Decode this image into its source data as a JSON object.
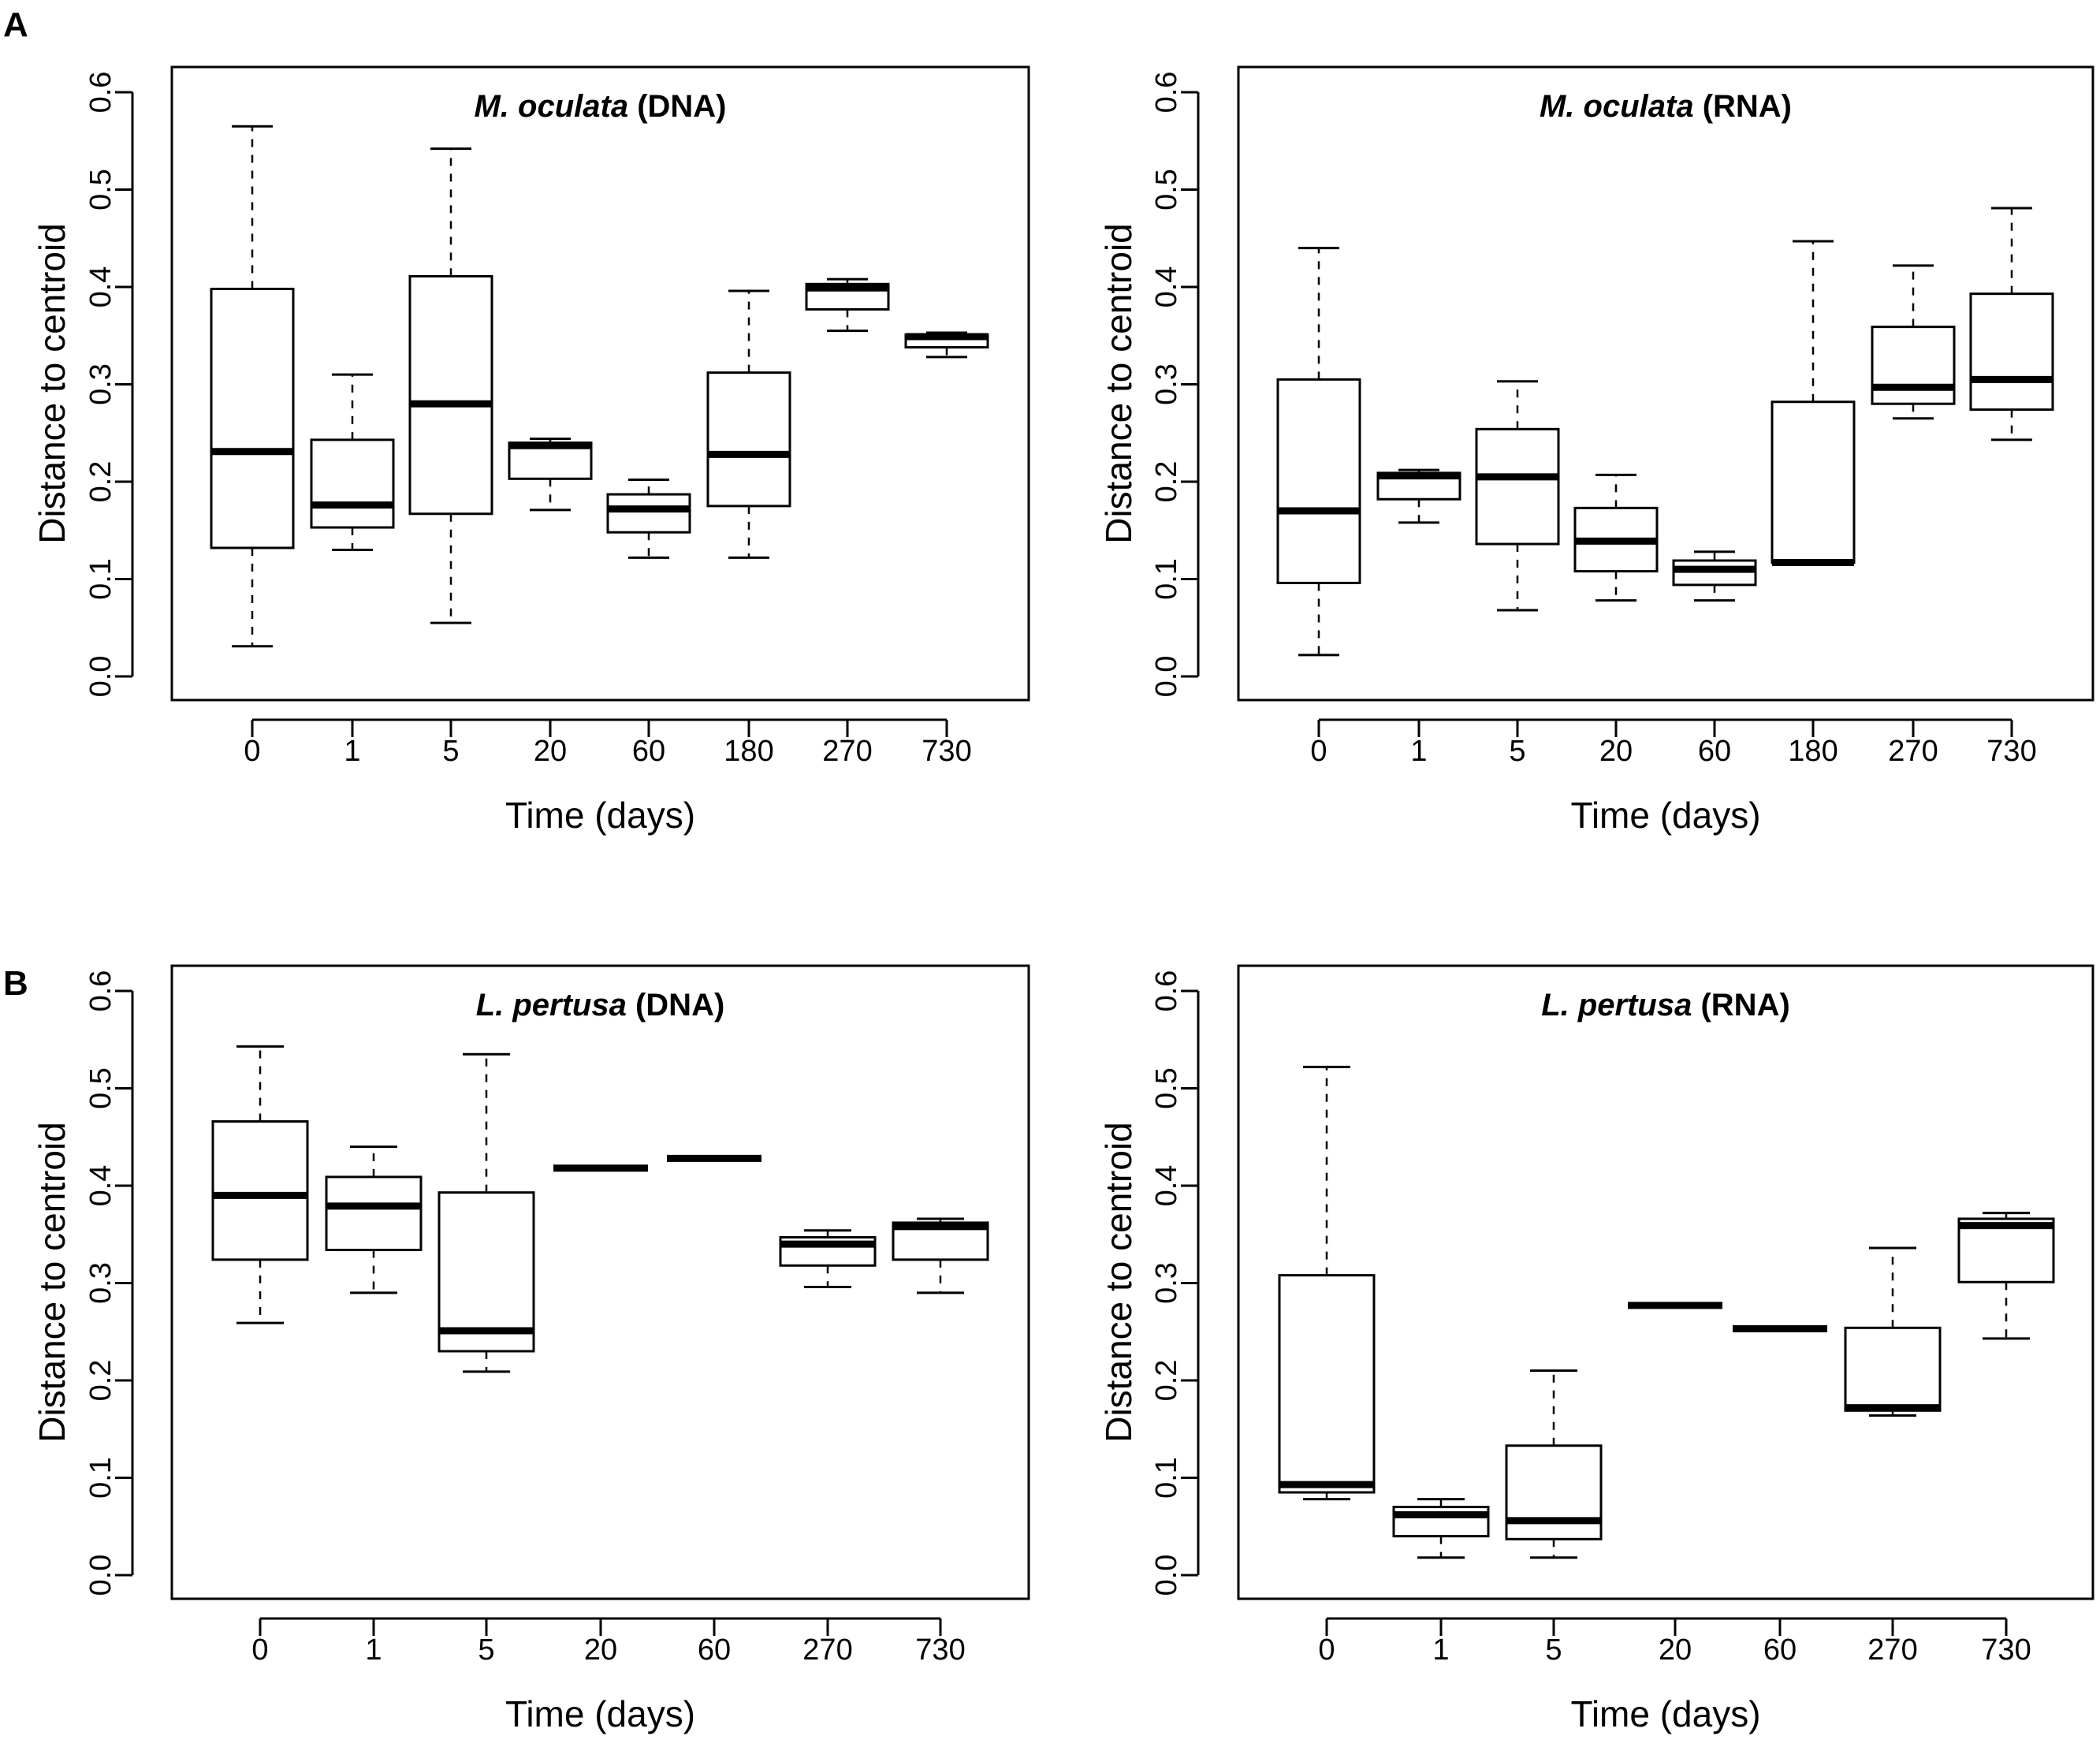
{
  "figure": {
    "panel_labels": [
      "A",
      "B"
    ]
  },
  "chart_data": [
    {
      "type": "box",
      "panel": "A",
      "title_italic": "M. oculata",
      "title_rest": " (DNA)",
      "xlabel": "Time (days)",
      "ylabel": "Distance to centroid",
      "ylim": [
        0.0,
        0.6
      ],
      "yticks": [
        "0.0",
        "0.1",
        "0.2",
        "0.3",
        "0.4",
        "0.5",
        "0.6"
      ],
      "categories": [
        "0",
        "1",
        "5",
        "20",
        "60",
        "180",
        "270",
        "730"
      ],
      "boxes": [
        {
          "min": 0.031,
          "q1": 0.132,
          "median": 0.231,
          "q3": 0.398,
          "max": 0.565
        },
        {
          "min": 0.13,
          "q1": 0.153,
          "median": 0.176,
          "q3": 0.243,
          "max": 0.31
        },
        {
          "min": 0.055,
          "q1": 0.167,
          "median": 0.28,
          "q3": 0.411,
          "max": 0.542
        },
        {
          "min": 0.171,
          "q1": 0.203,
          "median": 0.237,
          "q3": 0.24,
          "max": 0.244
        },
        {
          "min": 0.122,
          "q1": 0.148,
          "median": 0.172,
          "q3": 0.187,
          "max": 0.202
        },
        {
          "min": 0.122,
          "q1": 0.175,
          "median": 0.228,
          "q3": 0.312,
          "max": 0.396
        },
        {
          "min": 0.355,
          "q1": 0.377,
          "median": 0.399,
          "q3": 0.403,
          "max": 0.408
        },
        {
          "min": 0.328,
          "q1": 0.338,
          "median": 0.349,
          "q3": 0.351,
          "max": 0.353
        }
      ]
    },
    {
      "type": "box",
      "panel": "A",
      "title_italic": "M. oculata",
      "title_rest": " (RNA)",
      "xlabel": "Time (days)",
      "ylabel": "Distance to centroid",
      "ylim": [
        0.0,
        0.6
      ],
      "yticks": [
        "0.0",
        "0.1",
        "0.2",
        "0.3",
        "0.4",
        "0.5",
        "0.6"
      ],
      "categories": [
        "0",
        "1",
        "5",
        "20",
        "60",
        "180",
        "270",
        "730"
      ],
      "boxes": [
        {
          "min": 0.022,
          "q1": 0.096,
          "median": 0.17,
          "q3": 0.305,
          "max": 0.44
        },
        {
          "min": 0.158,
          "q1": 0.182,
          "median": 0.206,
          "q3": 0.209,
          "max": 0.212
        },
        {
          "min": 0.068,
          "q1": 0.136,
          "median": 0.205,
          "q3": 0.254,
          "max": 0.303
        },
        {
          "min": 0.078,
          "q1": 0.108,
          "median": 0.139,
          "q3": 0.173,
          "max": 0.207
        },
        {
          "min": 0.078,
          "q1": 0.094,
          "median": 0.11,
          "q3": 0.119,
          "max": 0.128
        },
        {
          "min": 0.117,
          "q1": 0.117,
          "median": 0.117,
          "q3": 0.282,
          "max": 0.447
        },
        {
          "min": 0.265,
          "q1": 0.28,
          "median": 0.297,
          "q3": 0.359,
          "max": 0.422
        },
        {
          "min": 0.243,
          "q1": 0.274,
          "median": 0.305,
          "q3": 0.393,
          "max": 0.481
        }
      ]
    },
    {
      "type": "box",
      "panel": "B",
      "title_italic": "L. pertusa",
      "title_rest": " (DNA)",
      "xlabel": "Time (days)",
      "ylabel": "Distance to centroid",
      "ylim": [
        0.0,
        0.6
      ],
      "yticks": [
        "0.0",
        "0.1",
        "0.2",
        "0.3",
        "0.4",
        "0.5",
        "0.6"
      ],
      "categories": [
        "0",
        "1",
        "5",
        "20",
        "60",
        "270",
        "730"
      ],
      "boxes": [
        {
          "min": 0.259,
          "q1": 0.324,
          "median": 0.39,
          "q3": 0.466,
          "max": 0.543
        },
        {
          "min": 0.29,
          "q1": 0.334,
          "median": 0.379,
          "q3": 0.409,
          "max": 0.44
        },
        {
          "min": 0.209,
          "q1": 0.23,
          "median": 0.251,
          "q3": 0.393,
          "max": 0.535
        },
        {
          "min": 0.418,
          "q1": 0.418,
          "median": 0.418,
          "q3": 0.418,
          "max": 0.418
        },
        {
          "min": 0.428,
          "q1": 0.428,
          "median": 0.428,
          "q3": 0.428,
          "max": 0.428
        },
        {
          "min": 0.296,
          "q1": 0.318,
          "median": 0.34,
          "q3": 0.347,
          "max": 0.354
        },
        {
          "min": 0.29,
          "q1": 0.324,
          "median": 0.358,
          "q3": 0.362,
          "max": 0.366
        }
      ]
    },
    {
      "type": "box",
      "panel": "B",
      "title_italic": "L. pertusa",
      "title_rest": " (RNA)",
      "xlabel": "Time (days)",
      "ylabel": "Distance to centroid",
      "ylim": [
        0.0,
        0.6
      ],
      "yticks": [
        "0.0",
        "0.1",
        "0.2",
        "0.3",
        "0.4",
        "0.5",
        "0.6"
      ],
      "categories": [
        "0",
        "1",
        "5",
        "20",
        "60",
        "270",
        "730"
      ],
      "boxes": [
        {
          "min": 0.078,
          "q1": 0.085,
          "median": 0.093,
          "q3": 0.308,
          "max": 0.522
        },
        {
          "min": 0.018,
          "q1": 0.04,
          "median": 0.062,
          "q3": 0.07,
          "max": 0.078
        },
        {
          "min": 0.018,
          "q1": 0.037,
          "median": 0.056,
          "q3": 0.133,
          "max": 0.21
        },
        {
          "min": 0.277,
          "q1": 0.277,
          "median": 0.277,
          "q3": 0.277,
          "max": 0.277
        },
        {
          "min": 0.253,
          "q1": 0.253,
          "median": 0.253,
          "q3": 0.253,
          "max": 0.253
        },
        {
          "min": 0.164,
          "q1": 0.169,
          "median": 0.172,
          "q3": 0.254,
          "max": 0.336
        },
        {
          "min": 0.243,
          "q1": 0.301,
          "median": 0.359,
          "q3": 0.366,
          "max": 0.372
        }
      ]
    }
  ]
}
